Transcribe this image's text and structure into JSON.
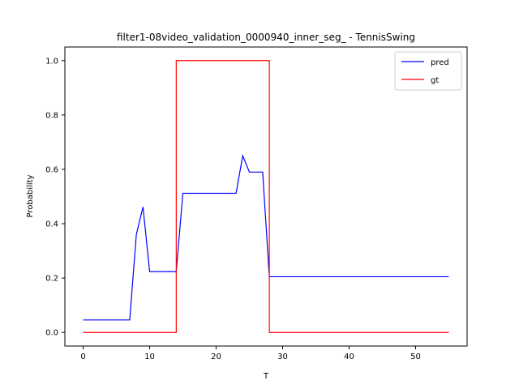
{
  "chart_data": {
    "type": "line",
    "title": "filter1-08video_validation_0000940_inner_seg_ - TennisSwing",
    "xlabel": "T",
    "ylabel": "Probability",
    "xlim": [
      -2.75,
      57.75
    ],
    "ylim": [
      -0.05,
      1.05
    ],
    "xticks": [
      0,
      10,
      20,
      30,
      40,
      50
    ],
    "xtick_labels": [
      "0",
      "10",
      "20",
      "30",
      "40",
      "50"
    ],
    "yticks": [
      0.0,
      0.2,
      0.4,
      0.6,
      0.8,
      1.0
    ],
    "ytick_labels": [
      "0.0",
      "0.2",
      "0.4",
      "0.6",
      "0.8",
      "1.0"
    ],
    "grid": false,
    "legend_position": "top-right",
    "series": [
      {
        "name": "pred",
        "color": "#0000ff",
        "x": [
          0,
          1,
          2,
          3,
          4,
          5,
          6,
          7,
          8,
          9,
          10,
          11,
          12,
          13,
          14,
          15,
          16,
          17,
          18,
          19,
          20,
          21,
          22,
          23,
          24,
          25,
          26,
          27,
          28,
          29,
          30,
          31,
          32,
          33,
          34,
          35,
          36,
          37,
          38,
          39,
          40,
          41,
          42,
          43,
          44,
          45,
          46,
          47,
          48,
          49,
          50,
          51,
          52,
          53,
          54,
          55
        ],
        "y": [
          0.046,
          0.046,
          0.046,
          0.046,
          0.046,
          0.046,
          0.046,
          0.046,
          0.36,
          0.462,
          0.224,
          0.224,
          0.224,
          0.224,
          0.224,
          0.512,
          0.512,
          0.512,
          0.512,
          0.512,
          0.512,
          0.512,
          0.512,
          0.512,
          0.65,
          0.59,
          0.59,
          0.59,
          0.205,
          0.205,
          0.205,
          0.205,
          0.205,
          0.205,
          0.205,
          0.205,
          0.205,
          0.205,
          0.205,
          0.205,
          0.205,
          0.205,
          0.205,
          0.205,
          0.205,
          0.205,
          0.205,
          0.205,
          0.205,
          0.205,
          0.205,
          0.205,
          0.205,
          0.205,
          0.205,
          0.205
        ]
      },
      {
        "name": "gt",
        "color": "#ff0000",
        "x": [
          0,
          14,
          14,
          28,
          28,
          55
        ],
        "y": [
          0,
          0,
          1,
          1,
          0,
          0
        ]
      }
    ]
  }
}
